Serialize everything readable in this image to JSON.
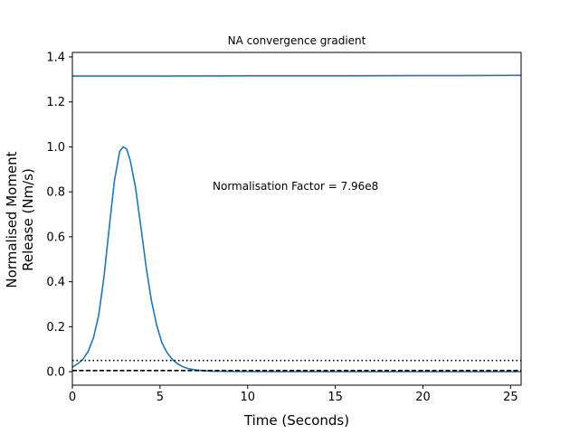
{
  "chart_data": {
    "type": "line",
    "title": "NA convergence gradient",
    "xlabel": "Time (Seconds)",
    "ylabel_lines": [
      "Normalised Moment",
      "Release (Nm/s)"
    ],
    "xlim": [
      0,
      25.6
    ],
    "ylim": [
      -0.06,
      1.42
    ],
    "xticks": [
      0,
      5,
      10,
      15,
      20,
      25
    ],
    "yticks": [
      0.0,
      0.2,
      0.4,
      0.6,
      0.8,
      1.0,
      1.2,
      1.4
    ],
    "ytick_labels": [
      "0.0",
      "0.2",
      "0.4",
      "0.6",
      "0.8",
      "1.0",
      "1.2",
      "1.4"
    ],
    "grid": false,
    "annotation": "Normalisation Factor = 7.96e8",
    "series": [
      {
        "style": "solid",
        "color": "#1f77b4",
        "x": [
          0,
          0.3,
          0.6,
          0.9,
          1.2,
          1.5,
          1.8,
          2.1,
          2.4,
          2.7,
          2.9,
          3.1,
          3.3,
          3.6,
          3.9,
          4.2,
          4.5,
          4.8,
          5.1,
          5.4,
          5.7,
          6.0,
          6.3,
          6.6,
          7.0,
          7.5,
          8.0,
          9.0,
          10,
          12,
          15,
          20,
          25.6
        ],
        "y": [
          0.02,
          0.035,
          0.055,
          0.09,
          0.15,
          0.25,
          0.42,
          0.64,
          0.85,
          0.98,
          1.0,
          0.99,
          0.94,
          0.82,
          0.65,
          0.47,
          0.32,
          0.21,
          0.13,
          0.085,
          0.055,
          0.035,
          0.022,
          0.014,
          0.008,
          0.004,
          0.002,
          0.001,
          0.0005,
          0.0,
          0.0,
          0.0,
          0.0
        ]
      },
      {
        "style": "solid",
        "color": "#1f77b4",
        "x": [
          0,
          5,
          10,
          15,
          20,
          25.6
        ],
        "y": [
          1.315,
          1.315,
          1.316,
          1.316,
          1.317,
          1.318
        ]
      },
      {
        "style": "dotted",
        "color": "#000000",
        "x": [
          0,
          25.6
        ],
        "y": [
          0.05,
          0.05
        ]
      },
      {
        "style": "dashed",
        "color": "#000000",
        "x": [
          0,
          25.6
        ],
        "y": [
          0.005,
          0.005
        ]
      }
    ]
  }
}
